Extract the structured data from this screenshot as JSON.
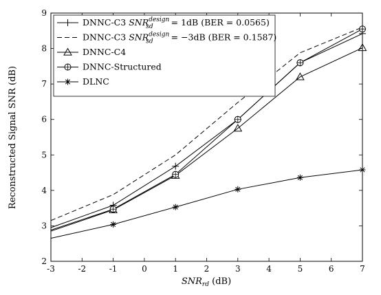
{
  "chart_data": {
    "type": "line",
    "title": "",
    "xlabel": {
      "main": "SNR",
      "sub": "rd",
      "unit": " (dB)"
    },
    "ylabel": "Reconstructed Signal SNR (dB)",
    "xlim": [
      -3,
      7
    ],
    "ylim": [
      2,
      9
    ],
    "xticks": [
      "-3",
      "-2",
      "-1",
      "0",
      "1",
      "2",
      "3",
      "4",
      "5",
      "6",
      "7"
    ],
    "yticks": [
      "2",
      "3",
      "4",
      "5",
      "6",
      "7",
      "8",
      "9"
    ],
    "grid": false,
    "legend_position": "top-left",
    "series": [
      {
        "name": "DNNC-C3 SNR_sd^design = 1dB (BER = 0.0565)",
        "legend_parts": {
          "prefix": "DNNC-C3 ",
          "var": "SNR",
          "sup": "design",
          "sub": "sd",
          "suffix": " = 1dB (BER = 0.0565)"
        },
        "marker": "plus",
        "dash": "none",
        "marker_x": [
          -1,
          1,
          3,
          5,
          7
        ],
        "x": [
          -3,
          -1,
          1,
          3,
          5,
          7
        ],
        "y": [
          2.95,
          3.58,
          4.68,
          6.0,
          7.6,
          8.42
        ]
      },
      {
        "name": "DNNC-C3 SNR_sd^design = -3dB (BER = 0.1587)",
        "legend_parts": {
          "prefix": "DNNC-C3 ",
          "var": "SNR",
          "sup": "design",
          "sub": "sd",
          "suffix": " = −3dB (BER = 0.1587)"
        },
        "marker": "none",
        "dash": "dashed",
        "marker_x": [],
        "x": [
          -3,
          -1,
          1,
          3,
          5,
          7
        ],
        "y": [
          3.15,
          3.88,
          5.0,
          6.48,
          7.88,
          8.6
        ]
      },
      {
        "name": "DNNC-C4",
        "legend_parts": {
          "prefix": "DNNC-C4",
          "var": "",
          "sup": "",
          "sub": "",
          "suffix": ""
        },
        "marker": "triangle",
        "dash": "none",
        "marker_x": [
          -1,
          1,
          3,
          5,
          7
        ],
        "x": [
          -3,
          -1,
          1,
          3,
          5,
          7
        ],
        "y": [
          2.85,
          3.45,
          4.42,
          5.75,
          7.2,
          8.02
        ]
      },
      {
        "name": "DNNC-Structured",
        "legend_parts": {
          "prefix": "DNNC-Structured",
          "var": "",
          "sup": "",
          "sub": "",
          "suffix": ""
        },
        "marker": "circle",
        "dash": "none",
        "marker_x": [
          -1,
          1,
          3,
          5,
          7
        ],
        "x": [
          -3,
          -1,
          1,
          3,
          5,
          7
        ],
        "y": [
          2.88,
          3.47,
          4.45,
          6.0,
          7.6,
          8.55
        ]
      },
      {
        "name": "DLNC",
        "legend_parts": {
          "prefix": "DLNC",
          "var": "",
          "sup": "",
          "sub": "",
          "suffix": ""
        },
        "marker": "star",
        "dash": "none",
        "marker_x": [
          -1,
          1,
          3,
          5,
          7
        ],
        "x": [
          -3,
          -1,
          1,
          3,
          5,
          7
        ],
        "y": [
          2.65,
          3.04,
          3.53,
          4.03,
          4.36,
          4.58
        ]
      }
    ]
  }
}
